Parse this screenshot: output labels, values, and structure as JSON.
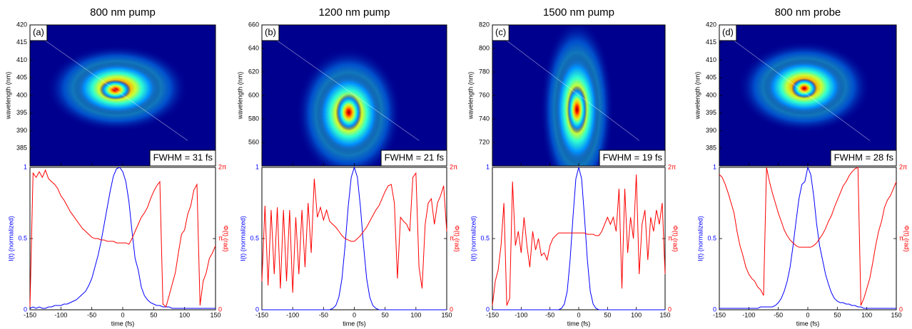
{
  "chart_data": [
    {
      "type": "line",
      "title": "800 nm pump",
      "panel_label": "(a)",
      "annotation": "FWHM = 31 fs",
      "spectrogram": {
        "type": "heatmap",
        "ylabel": "wavelength (nm)",
        "ylim": [
          380,
          420
        ],
        "yticks": [
          385,
          390,
          395,
          400,
          405,
          410,
          415,
          420
        ]
      },
      "xlabel": "time (fs)",
      "ylabel": "I(t) (normalized)",
      "y2label": "Φ(t) (rad)",
      "xlim": [
        -150,
        150
      ],
      "xticks": [
        -150,
        -100,
        -50,
        0,
        50,
        100,
        150
      ],
      "ylim": [
        0,
        1
      ],
      "yticks": [
        0,
        0.5,
        1
      ],
      "y2lim": [
        0,
        6.2832
      ],
      "y2ticks": [
        0,
        {
          "value": 3.1416,
          "label": "π"
        },
        {
          "value": 6.2832,
          "label": "2π"
        }
      ],
      "x": [
        -150,
        -145,
        -140,
        -135,
        -130,
        -125,
        -120,
        -115,
        -110,
        -105,
        -100,
        -95,
        -90,
        -85,
        -80,
        -75,
        -70,
        -65,
        -60,
        -55,
        -50,
        -45,
        -40,
        -35,
        -30,
        -25,
        -20,
        -15,
        -10,
        -5,
        0,
        5,
        10,
        15,
        20,
        25,
        30,
        35,
        40,
        45,
        50,
        55,
        60,
        65,
        70,
        75,
        80,
        85,
        90,
        95,
        100,
        105,
        110,
        115,
        120,
        125,
        130,
        135,
        140,
        145,
        150
      ],
      "series": [
        {
          "color": "#0000ff",
          "values": [
            0.01,
            0.02,
            0.01,
            0.02,
            0.01,
            0.01,
            0.02,
            0.02,
            0.03,
            0.03,
            0.03,
            0.04,
            0.04,
            0.05,
            0.06,
            0.07,
            0.09,
            0.11,
            0.13,
            0.17,
            0.22,
            0.3,
            0.38,
            0.48,
            0.6,
            0.72,
            0.84,
            0.94,
            0.99,
            1.0,
            0.97,
            0.9,
            0.76,
            0.55,
            0.36,
            0.28,
            0.16,
            0.1,
            0.07,
            0.05,
            0.04,
            0.03,
            0.03,
            0.02,
            0.02,
            0.02,
            0.01,
            0.01,
            0.01,
            0.01,
            0.01,
            0.01,
            0.01,
            0.01,
            0.01,
            0.01,
            0.01,
            0.01,
            0.01,
            0.01,
            0.01
          ]
        },
        {
          "color": "#ff0000",
          "axis": "y2",
          "values": [
            0.13,
            6.03,
            5.84,
            6.09,
            5.84,
            6.16,
            5.78,
            5.65,
            5.53,
            5.34,
            5.03,
            4.84,
            4.59,
            4.34,
            4.15,
            3.96,
            3.77,
            3.58,
            3.46,
            3.33,
            3.2,
            3.14,
            3.14,
            3.08,
            3.08,
            3.02,
            3.02,
            3.02,
            2.95,
            2.95,
            2.95,
            2.95,
            2.89,
            3.14,
            3.46,
            3.77,
            4.08,
            4.27,
            4.52,
            4.9,
            5.22,
            5.47,
            5.65,
            0.25,
            0.13,
            0.63,
            1.13,
            1.63,
            2.51,
            3.33,
            3.52,
            4.21,
            4.59,
            5.28,
            5.53,
            0.19,
            1.26,
            1.63,
            2.26,
            2.51,
            2.83
          ]
        }
      ]
    },
    {
      "type": "line",
      "title": "1200 nm pump",
      "panel_label": "(b)",
      "annotation": "FWHM = 21 fs",
      "spectrogram": {
        "type": "heatmap",
        "ylabel": "wavelength (nm)",
        "ylim": [
          540,
          660
        ],
        "yticks": [
          560,
          580,
          600,
          620,
          640,
          660
        ]
      },
      "xlabel": "time (fs)",
      "ylabel": "I(t) (normalized)",
      "y2label": "Φ(t) (rad)",
      "xlim": [
        -150,
        150
      ],
      "xticks": [
        -150,
        -100,
        -50,
        0,
        50,
        100,
        150
      ],
      "ylim": [
        0,
        1
      ],
      "yticks": [
        0,
        0.5,
        1
      ],
      "y2lim": [
        0,
        6.2832
      ],
      "y2ticks": [
        0,
        {
          "value": 3.1416,
          "label": "π"
        },
        {
          "value": 6.2832,
          "label": "2π"
        }
      ],
      "x": [
        -150,
        -145,
        -140,
        -135,
        -130,
        -125,
        -120,
        -115,
        -110,
        -105,
        -100,
        -95,
        -90,
        -85,
        -80,
        -75,
        -70,
        -65,
        -60,
        -55,
        -50,
        -45,
        -40,
        -35,
        -30,
        -25,
        -20,
        -15,
        -10,
        -5,
        0,
        5,
        10,
        15,
        20,
        25,
        30,
        35,
        40,
        45,
        50,
        55,
        60,
        65,
        70,
        75,
        80,
        85,
        90,
        95,
        100,
        105,
        110,
        115,
        120,
        125,
        130,
        135,
        140,
        145,
        150
      ],
      "series": [
        {
          "color": "#0000ff",
          "values": [
            0,
            0,
            0,
            0,
            0,
            0,
            0,
            0,
            0,
            0,
            0,
            0,
            0,
            0,
            0,
            0,
            0,
            0,
            0,
            0,
            0,
            0,
            0,
            0.01,
            0.03,
            0.09,
            0.22,
            0.45,
            0.72,
            0.93,
            1,
            0.93,
            0.72,
            0.45,
            0.22,
            0.09,
            0.03,
            0.01,
            0,
            0,
            0,
            0,
            0,
            0,
            0,
            0,
            0,
            0,
            0,
            0,
            0,
            0,
            0,
            0,
            0,
            0,
            0,
            0,
            0,
            0,
            0
          ]
        },
        {
          "color": "#ff0000",
          "axis": "y2",
          "values": [
            1.26,
            4.59,
            1.07,
            4.4,
            1.57,
            4.52,
            0.94,
            4.4,
            1.26,
            4.4,
            0.75,
            4.08,
            1.57,
            4.4,
            1.88,
            4.71,
            2.51,
            5.78,
            4.08,
            4.52,
            3.96,
            4.4,
            3.9,
            3.77,
            3.64,
            3.46,
            3.27,
            3.14,
            3.08,
            3.02,
            3.02,
            3.14,
            3.27,
            3.46,
            3.64,
            3.9,
            4.15,
            4.4,
            4.59,
            4.9,
            5.22,
            5.47,
            5.53,
            4.71,
            1.38,
            4.08,
            3.9,
            3.77,
            3.46,
            5.84,
            6.03,
            1.88,
            0.94,
            3.77,
            4.71,
            4.9,
            3.77,
            4.71,
            5.03,
            5.47,
            3.46
          ]
        }
      ]
    },
    {
      "type": "line",
      "title": "1500 nm pump",
      "panel_label": "(c)",
      "annotation": "FWHM = 19 fs",
      "spectrogram": {
        "type": "heatmap",
        "ylabel": "wavelength (nm)",
        "ylim": [
          700,
          820
        ],
        "yticks": [
          720,
          740,
          760,
          780,
          800,
          820
        ]
      },
      "xlabel": "time (fs)",
      "ylabel": "I(t) (normalized)",
      "y2label": "Φ(t) (rad)",
      "xlim": [
        -150,
        150
      ],
      "xticks": [
        -150,
        -100,
        -50,
        0,
        50,
        100,
        150
      ],
      "ylim": [
        0,
        1
      ],
      "yticks": [
        0,
        0.5,
        1
      ],
      "y2lim": [
        0,
        6.2832
      ],
      "y2ticks": [
        0,
        {
          "value": 3.1416,
          "label": "π"
        },
        {
          "value": 6.2832,
          "label": "2π"
        }
      ],
      "x": [
        -150,
        -145,
        -140,
        -135,
        -130,
        -125,
        -120,
        -115,
        -110,
        -105,
        -100,
        -95,
        -90,
        -85,
        -80,
        -75,
        -70,
        -65,
        -60,
        -55,
        -50,
        -45,
        -40,
        -35,
        -30,
        -25,
        -20,
        -15,
        -10,
        -5,
        0,
        5,
        10,
        15,
        20,
        25,
        30,
        35,
        40,
        45,
        50,
        55,
        60,
        65,
        70,
        75,
        80,
        85,
        90,
        95,
        100,
        105,
        110,
        115,
        120,
        125,
        130,
        135,
        140,
        145,
        150
      ],
      "series": [
        {
          "color": "#0000ff",
          "values": [
            0,
            0,
            0,
            0,
            0,
            0,
            0,
            0,
            0,
            0,
            0,
            0,
            0,
            0,
            0,
            0,
            0,
            0,
            0,
            0,
            0,
            0,
            0,
            0,
            0.01,
            0.04,
            0.13,
            0.35,
            0.65,
            0.92,
            1,
            0.92,
            0.65,
            0.35,
            0.13,
            0.04,
            0.01,
            0,
            0,
            0,
            0,
            0,
            0,
            0,
            0,
            0,
            0,
            0,
            0,
            0,
            0,
            0,
            0,
            0,
            0,
            0,
            0,
            0,
            0,
            0,
            0
          ]
        },
        {
          "color": "#ff0000",
          "axis": "y2",
          "values": [
            0.19,
            1.26,
            1.76,
            2.83,
            4.71,
            0.19,
            0.5,
            5.65,
            2.83,
            3.46,
            2.51,
            4.08,
            2.83,
            1.88,
            3.46,
            2.64,
            3.14,
            2.39,
            2.51,
            2.2,
            2.83,
            3.14,
            3.27,
            3.39,
            3.39,
            3.39,
            3.39,
            3.39,
            3.39,
            3.39,
            3.39,
            3.39,
            3.39,
            3.33,
            3.33,
            3.33,
            3.27,
            3.27,
            3.46,
            3.77,
            4.08,
            3.77,
            4.08,
            3.46,
            5.34,
            0.94,
            5.34,
            2.51,
            4.08,
            3.14,
            5.97,
            1.57,
            3.77,
            4.4,
            2.2,
            4.08,
            3.46,
            4.4,
            3.77,
            4.71,
            1.57
          ]
        }
      ]
    },
    {
      "type": "line",
      "title": "800 nm probe",
      "panel_label": "(d)",
      "annotation": "FWHM = 28 fs",
      "spectrogram": {
        "type": "heatmap",
        "ylabel": "wavelength (nm)",
        "ylim": [
          380,
          420
        ],
        "yticks": [
          385,
          390,
          395,
          400,
          405,
          410,
          415,
          420
        ]
      },
      "xlabel": "time (fs)",
      "ylabel": "I(t) (normalized)",
      "y2label": "Φ(t) (rad)",
      "xlim": [
        -150,
        150
      ],
      "xticks": [
        -150,
        -100,
        -50,
        0,
        50,
        100,
        150
      ],
      "ylim": [
        0,
        1
      ],
      "yticks": [
        0,
        0.5,
        1
      ],
      "y2lim": [
        0,
        6.2832
      ],
      "y2ticks": [
        0,
        {
          "value": 3.1416,
          "label": "π"
        },
        {
          "value": 6.2832,
          "label": "2π"
        }
      ],
      "x": [
        -150,
        -145,
        -140,
        -135,
        -130,
        -125,
        -120,
        -115,
        -110,
        -105,
        -100,
        -95,
        -90,
        -85,
        -80,
        -75,
        -70,
        -65,
        -60,
        -55,
        -50,
        -45,
        -40,
        -35,
        -30,
        -25,
        -20,
        -15,
        -10,
        -5,
        0,
        5,
        10,
        15,
        20,
        25,
        30,
        35,
        40,
        45,
        50,
        55,
        60,
        65,
        70,
        75,
        80,
        85,
        90,
        95,
        100,
        105,
        110,
        115,
        120,
        125,
        130,
        135,
        140,
        145,
        150
      ],
      "series": [
        {
          "color": "#0000ff",
          "values": [
            0.01,
            0.01,
            0.01,
            0.01,
            0.01,
            0.01,
            0.01,
            0.01,
            0.01,
            0.01,
            0.01,
            0.01,
            0.01,
            0.01,
            0.02,
            0.02,
            0.02,
            0.02,
            0.02,
            0.03,
            0.05,
            0.08,
            0.13,
            0.2,
            0.3,
            0.45,
            0.62,
            0.78,
            0.88,
            0.9,
            1.0,
            0.95,
            0.8,
            0.6,
            0.45,
            0.35,
            0.25,
            0.18,
            0.12,
            0.08,
            0.06,
            0.05,
            0.05,
            0.04,
            0.04,
            0.03,
            0.03,
            0.02,
            0.02,
            0.01,
            0.01,
            0.01,
            0.01,
            0.01,
            0.01,
            0.01,
            0.01,
            0.01,
            0.01,
            0.01,
            0.01
          ]
        },
        {
          "color": "#ff0000",
          "axis": "y2",
          "values": [
            5.97,
            5.84,
            5.53,
            5.15,
            4.71,
            4.27,
            3.46,
            2.83,
            2.39,
            1.88,
            1.57,
            1.38,
            1.26,
            1.01,
            0.88,
            0.63,
            6.28,
            5.65,
            5.15,
            4.71,
            4.27,
            3.9,
            3.52,
            3.27,
            3.08,
            2.95,
            2.83,
            2.76,
            2.76,
            2.76,
            2.76,
            2.76,
            2.83,
            2.95,
            3.14,
            3.33,
            3.58,
            3.9,
            4.15,
            4.52,
            4.84,
            5.15,
            5.47,
            5.65,
            5.91,
            6.09,
            6.22,
            6.28,
            0.19,
            0.5,
            0.94,
            1.38,
            2.07,
            2.83,
            3.46,
            3.9,
            4.52,
            4.84,
            5.03,
            5.34,
            5.65
          ]
        }
      ]
    }
  ]
}
